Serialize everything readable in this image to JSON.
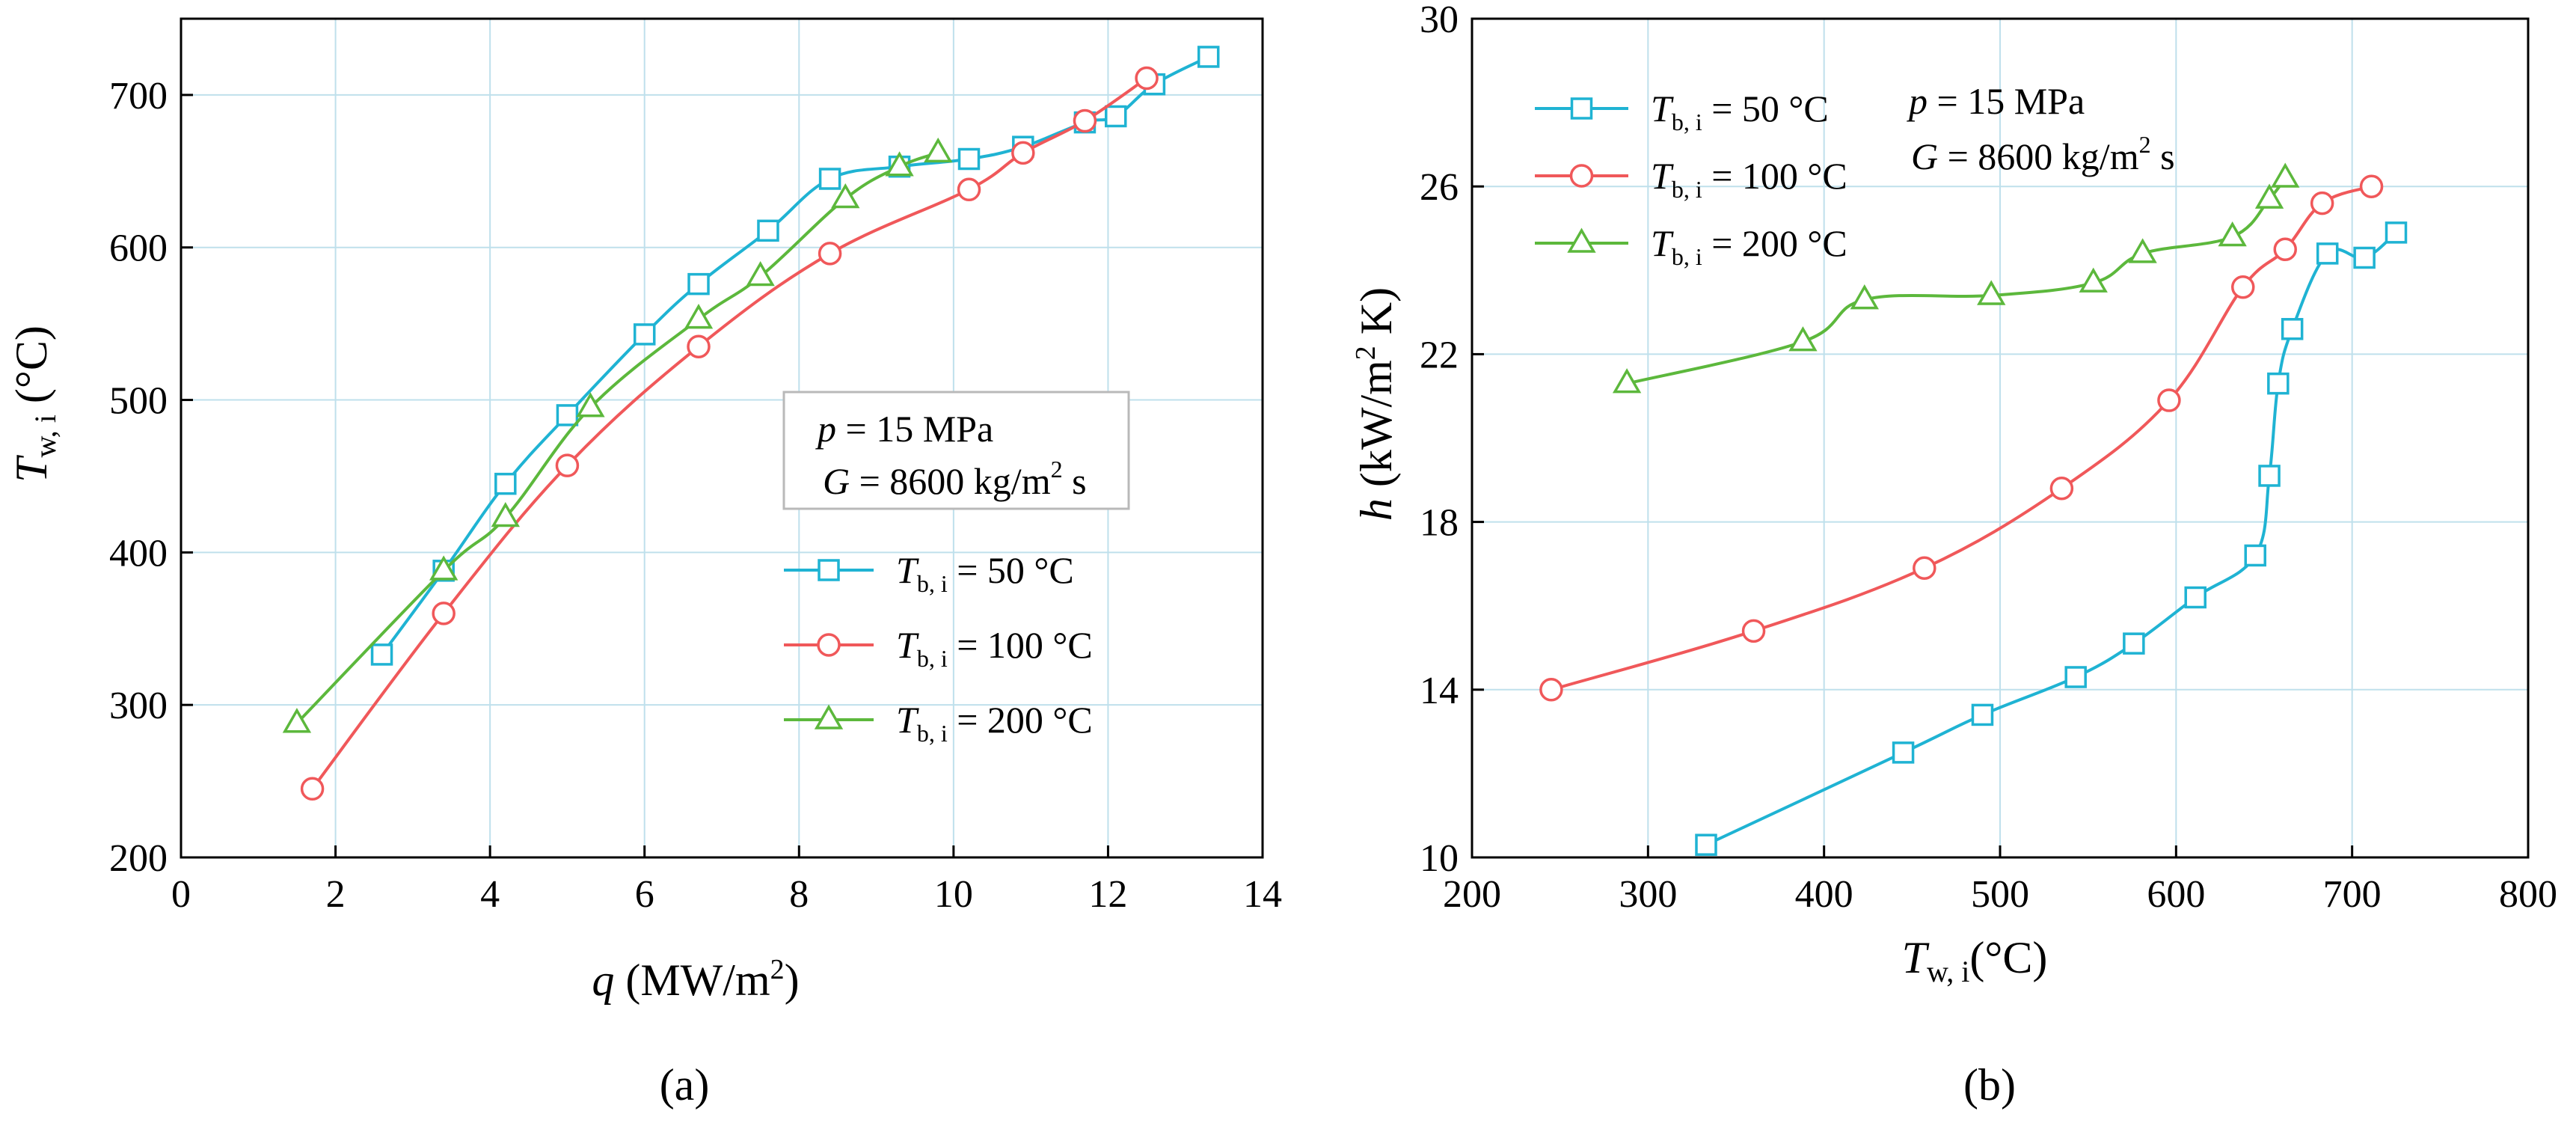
{
  "chart_data": [
    {
      "type": "line",
      "panel_label": "(a)",
      "x_title": {
        "main": "q",
        "unit_pre": " (MW/m",
        "unit_sup": "2",
        "unit_post": ")"
      },
      "y_title": {
        "main": "T",
        "sub": "w, i",
        "unit": " (°C)"
      },
      "xlim": [
        0,
        14
      ],
      "ylim": [
        200,
        750
      ],
      "xticks": [
        0,
        2,
        4,
        6,
        8,
        10,
        12,
        14
      ],
      "yticks": [
        200,
        300,
        400,
        500,
        600,
        700
      ],
      "grid": true,
      "condition_box": {
        "line1": {
          "var": "p",
          "text": " = 15 MPa"
        },
        "line2": {
          "var": "G",
          "text": " = 8600 kg/m",
          "sup": "2",
          "post": " s"
        }
      },
      "legend_position": "bottom-right",
      "series": [
        {
          "name": {
            "sym": "T",
            "sub": "b, i",
            "text": " = 50 °C"
          },
          "color": "#1fb3d3",
          "marker": "square",
          "x": [
            2.6,
            3.4,
            4.2,
            5.0,
            6.0,
            6.7,
            7.6,
            8.4,
            9.3,
            10.2,
            10.9,
            11.7,
            12.1,
            12.6,
            13.3
          ],
          "y": [
            333,
            388,
            445,
            490,
            543,
            576,
            611,
            645,
            653,
            658,
            666,
            682,
            686,
            707,
            725
          ]
        },
        {
          "name": {
            "sym": "T",
            "sub": "b, i",
            "text": " = 100 °C"
          },
          "color": "#f0585a",
          "marker": "circle",
          "x": [
            1.7,
            3.4,
            5.0,
            6.7,
            8.4,
            10.2,
            10.9,
            11.7,
            12.5
          ],
          "y": [
            245,
            360,
            457,
            535,
            596,
            638,
            662,
            683,
            711
          ]
        },
        {
          "name": {
            "sym": "T",
            "sub": "b, i",
            "text": " = 200 °C"
          },
          "color": "#5cb83c",
          "marker": "triangle",
          "x": [
            1.5,
            3.4,
            4.2,
            5.3,
            6.7,
            7.5,
            8.6,
            9.3,
            9.8
          ],
          "y": [
            288,
            388,
            423,
            495,
            553,
            581,
            632,
            653,
            662
          ]
        }
      ]
    },
    {
      "type": "line",
      "panel_label": "(b)",
      "x_title": {
        "main": "T",
        "sub": "w, i",
        "unit": "(°C)"
      },
      "y_title": {
        "main": "h",
        "unit_pre": " (kW/m",
        "unit_sup": "2",
        "unit_post": " K)"
      },
      "xlim": [
        200,
        800
      ],
      "ylim": [
        10,
        30
      ],
      "xticks": [
        200,
        300,
        400,
        500,
        600,
        700,
        800
      ],
      "yticks": [
        10,
        14,
        18,
        22,
        26,
        30
      ],
      "grid": true,
      "condition_box": {
        "line1": {
          "var": "p",
          "text": " = 15 MPa"
        },
        "line2": {
          "var": "G",
          "text": " = 8600 kg/m",
          "sup": "2",
          "post": " s"
        }
      },
      "legend_position": "top-left",
      "series": [
        {
          "name": {
            "sym": "T",
            "sub": "b, i",
            "text": " = 50 °C"
          },
          "color": "#1fb3d3",
          "marker": "square",
          "x": [
            333,
            445,
            490,
            543,
            576,
            611,
            645,
            653,
            658,
            666,
            686,
            707,
            725
          ],
          "y": [
            10.3,
            12.5,
            13.4,
            14.3,
            15.1,
            16.2,
            17.2,
            19.1,
            21.3,
            22.6,
            24.4,
            24.3,
            24.9
          ]
        },
        {
          "name": {
            "sym": "T",
            "sub": "b, i",
            "text": " = 100 °C"
          },
          "color": "#f0585a",
          "marker": "circle",
          "x": [
            245,
            360,
            457,
            535,
            596,
            638,
            662,
            683,
            711
          ],
          "y": [
            14.0,
            15.4,
            16.9,
            18.8,
            20.9,
            23.6,
            24.5,
            25.6,
            26.0
          ]
        },
        {
          "name": {
            "sym": "T",
            "sub": "b, i",
            "text": " = 200 °C"
          },
          "color": "#5cb83c",
          "marker": "triangle",
          "x": [
            288,
            388,
            423,
            495,
            553,
            581,
            632,
            653,
            662
          ],
          "y": [
            21.3,
            22.3,
            23.3,
            23.4,
            23.7,
            24.4,
            24.8,
            25.7,
            26.2
          ]
        }
      ]
    }
  ]
}
